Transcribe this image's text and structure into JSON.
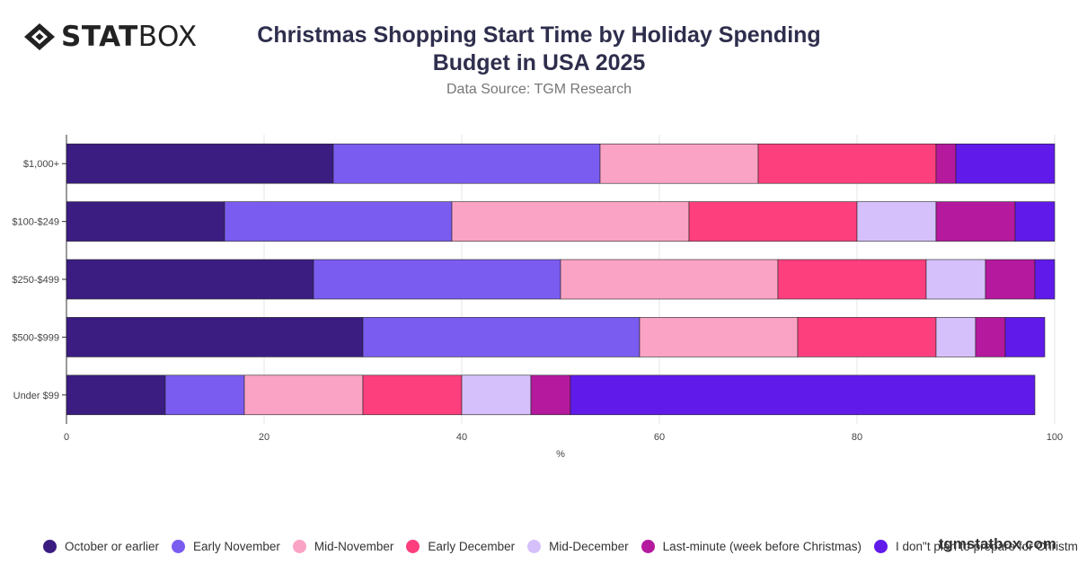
{
  "brand": {
    "logo_bold": "STAT",
    "logo_light": "BOX",
    "watermark": "tgmstatbox.com"
  },
  "chart_data": {
    "type": "bar",
    "orientation": "horizontal",
    "stacked": true,
    "title": "Christmas Shopping Start Time by Holiday Spending Budget in USA 2025",
    "subtitle": "Data Source: TGM Research",
    "xlabel": "%",
    "ylabel": "",
    "xlim": [
      0,
      100
    ],
    "xticks": [
      0,
      20,
      40,
      60,
      80,
      100
    ],
    "grid": true,
    "legend_position": "bottom",
    "categories": [
      "$1,000+",
      "$100-$249",
      "$250-$499",
      "$500-$999",
      "Under $99"
    ],
    "series": [
      {
        "name": "October or earlier",
        "color": "#3b1d82",
        "values": [
          27,
          16,
          25,
          30,
          10
        ]
      },
      {
        "name": "Early November",
        "color": "#7b5cf0",
        "values": [
          27,
          23,
          25,
          28,
          8
        ]
      },
      {
        "name": "Mid-November",
        "color": "#fba3c4",
        "values": [
          16,
          24,
          22,
          16,
          12
        ]
      },
      {
        "name": "Early December",
        "color": "#fd3f7e",
        "values": [
          18,
          17,
          15,
          14,
          10
        ]
      },
      {
        "name": "Mid-December",
        "color": "#d6c0fb",
        "values": [
          0,
          8,
          6,
          4,
          7
        ]
      },
      {
        "name": "Last-minute (week before Christmas)",
        "color": "#b5199e",
        "values": [
          2,
          8,
          5,
          3,
          4
        ]
      },
      {
        "name": "I don\"t plan to prepare for Christmas",
        "color": "#601aea",
        "values": [
          10,
          4,
          2,
          4,
          47
        ]
      }
    ]
  }
}
